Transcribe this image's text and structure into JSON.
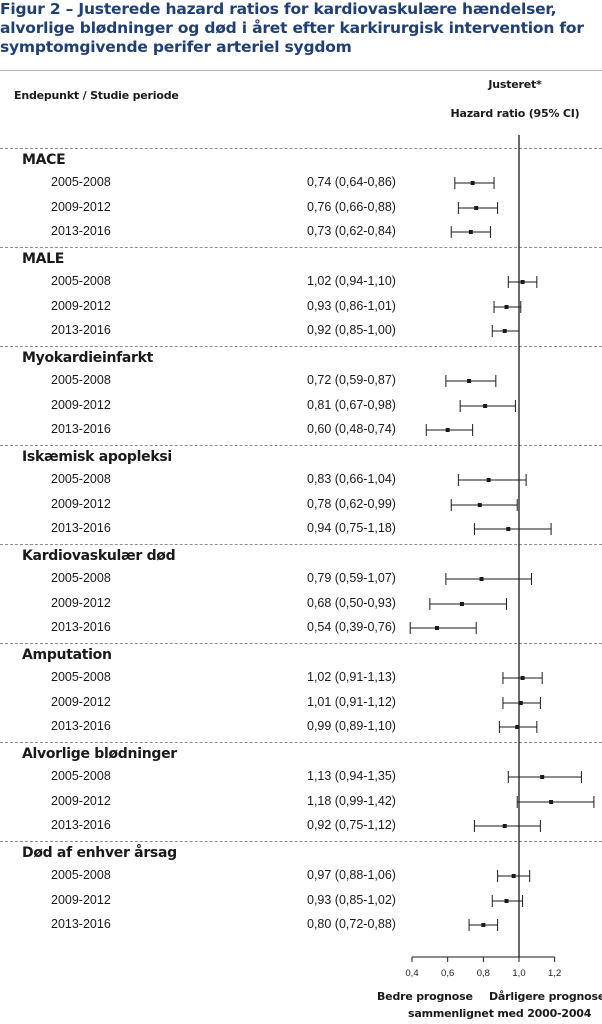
{
  "title": "Figur 2 – Justerede hazard ratios for kardiovaskulære hændelser,\nalvorlige blødninger og død i året efter karkirurgisk intervention for\nsymptomgivende perifer arteriel sygdom",
  "header": {
    "left": "Endepunkt / Studie periode",
    "right_line1": "Justeret*",
    "right_line2": "Hazard ratio (95% CI)"
  },
  "chart_data": {
    "type": "forest",
    "reference_line": 1.0,
    "xlim": [
      0.4,
      1.45
    ],
    "xticks": [
      0.4,
      0.6,
      0.8,
      1.0,
      1.2
    ],
    "xtick_labels": [
      "0,4",
      "0,6",
      "0,8",
      "1,0",
      "1,2"
    ],
    "groups": [
      {
        "name": "MACE",
        "rows": [
          {
            "period": "2005-2008",
            "label": "0,74 (0,64-0,86)",
            "hr": 0.74,
            "lo": 0.64,
            "hi": 0.86
          },
          {
            "period": "2009-2012",
            "label": "0,76 (0,66-0,88)",
            "hr": 0.76,
            "lo": 0.66,
            "hi": 0.88
          },
          {
            "period": "2013-2016",
            "label": "0,73 (0,62-0,84)",
            "hr": 0.73,
            "lo": 0.62,
            "hi": 0.84
          }
        ]
      },
      {
        "name": "MALE",
        "rows": [
          {
            "period": "2005-2008",
            "label": "1,02 (0,94-1,10)",
            "hr": 1.02,
            "lo": 0.94,
            "hi": 1.1
          },
          {
            "period": "2009-2012",
            "label": "0,93 (0,86-1,01)",
            "hr": 0.93,
            "lo": 0.86,
            "hi": 1.01
          },
          {
            "period": "2013-2016",
            "label": "0,92 (0,85-1,00)",
            "hr": 0.92,
            "lo": 0.85,
            "hi": 1.0
          }
        ]
      },
      {
        "name": "Myokardieinfarkt",
        "rows": [
          {
            "period": "2005-2008",
            "label": "0,72 (0,59-0,87)",
            "hr": 0.72,
            "lo": 0.59,
            "hi": 0.87
          },
          {
            "period": "2009-2012",
            "label": "0,81 (0,67-0,98)",
            "hr": 0.81,
            "lo": 0.67,
            "hi": 0.98
          },
          {
            "period": "2013-2016",
            "label": "0,60 (0,48-0,74)",
            "hr": 0.6,
            "lo": 0.48,
            "hi": 0.74
          }
        ]
      },
      {
        "name": "Iskæmisk apopleksi",
        "rows": [
          {
            "period": "2005-2008",
            "label": "0,83 (0,66-1,04)",
            "hr": 0.83,
            "lo": 0.66,
            "hi": 1.04
          },
          {
            "period": "2009-2012",
            "label": "0,78 (0,62-0,99)",
            "hr": 0.78,
            "lo": 0.62,
            "hi": 0.99
          },
          {
            "period": "2013-2016",
            "label": "0,94 (0,75-1,18)",
            "hr": 0.94,
            "lo": 0.75,
            "hi": 1.18
          }
        ]
      },
      {
        "name": "Kardiovaskulær død",
        "rows": [
          {
            "period": "2005-2008",
            "label": "0,79 (0,59-1,07)",
            "hr": 0.79,
            "lo": 0.59,
            "hi": 1.07
          },
          {
            "period": "2009-2012",
            "label": "0,68 (0,50-0,93)",
            "hr": 0.68,
            "lo": 0.5,
            "hi": 0.93
          },
          {
            "period": "2013-2016",
            "label": "0,54 (0,39-0,76)",
            "hr": 0.54,
            "lo": 0.39,
            "hi": 0.76
          }
        ]
      },
      {
        "name": "Amputation",
        "rows": [
          {
            "period": "2005-2008",
            "label": "1,02 (0,91-1,13)",
            "hr": 1.02,
            "lo": 0.91,
            "hi": 1.13
          },
          {
            "period": "2009-2012",
            "label": "1,01 (0,91-1,12)",
            "hr": 1.01,
            "lo": 0.91,
            "hi": 1.12
          },
          {
            "period": "2013-2016",
            "label": "0,99 (0,89-1,10)",
            "hr": 0.99,
            "lo": 0.89,
            "hi": 1.1
          }
        ]
      },
      {
        "name": "Alvorlige blødninger",
        "rows": [
          {
            "period": "2005-2008",
            "label": "1,13 (0,94-1,35)",
            "hr": 1.13,
            "lo": 0.94,
            "hi": 1.35
          },
          {
            "period": "2009-2012",
            "label": "1,18 (0,99-1,42)",
            "hr": 1.18,
            "lo": 0.99,
            "hi": 1.42
          },
          {
            "period": "2013-2016",
            "label": "0,92 (0,75-1,12)",
            "hr": 0.92,
            "lo": 0.75,
            "hi": 1.12
          }
        ]
      },
      {
        "name": "Død af enhver årsag",
        "rows": [
          {
            "period": "2005-2008",
            "label": "0,97 (0,88-1,06)",
            "hr": 0.97,
            "lo": 0.88,
            "hi": 1.06
          },
          {
            "period": "2009-2012",
            "label": "0,93 (0,85-1,02)",
            "hr": 0.93,
            "lo": 0.85,
            "hi": 1.02
          },
          {
            "period": "2013-2016",
            "label": "0,80 (0,72-0,88)",
            "hr": 0.8,
            "lo": 0.72,
            "hi": 0.88
          }
        ]
      }
    ]
  },
  "footer": {
    "better": "Bedre prognose",
    "worse": "Dårligere prognose",
    "compared": "sammenlignet med 2000-2004"
  },
  "colors": {
    "title": "#1f3f77",
    "ink": "#1a1a1a",
    "rule": "#b9b9b9",
    "dash": "#8f8f8f"
  }
}
